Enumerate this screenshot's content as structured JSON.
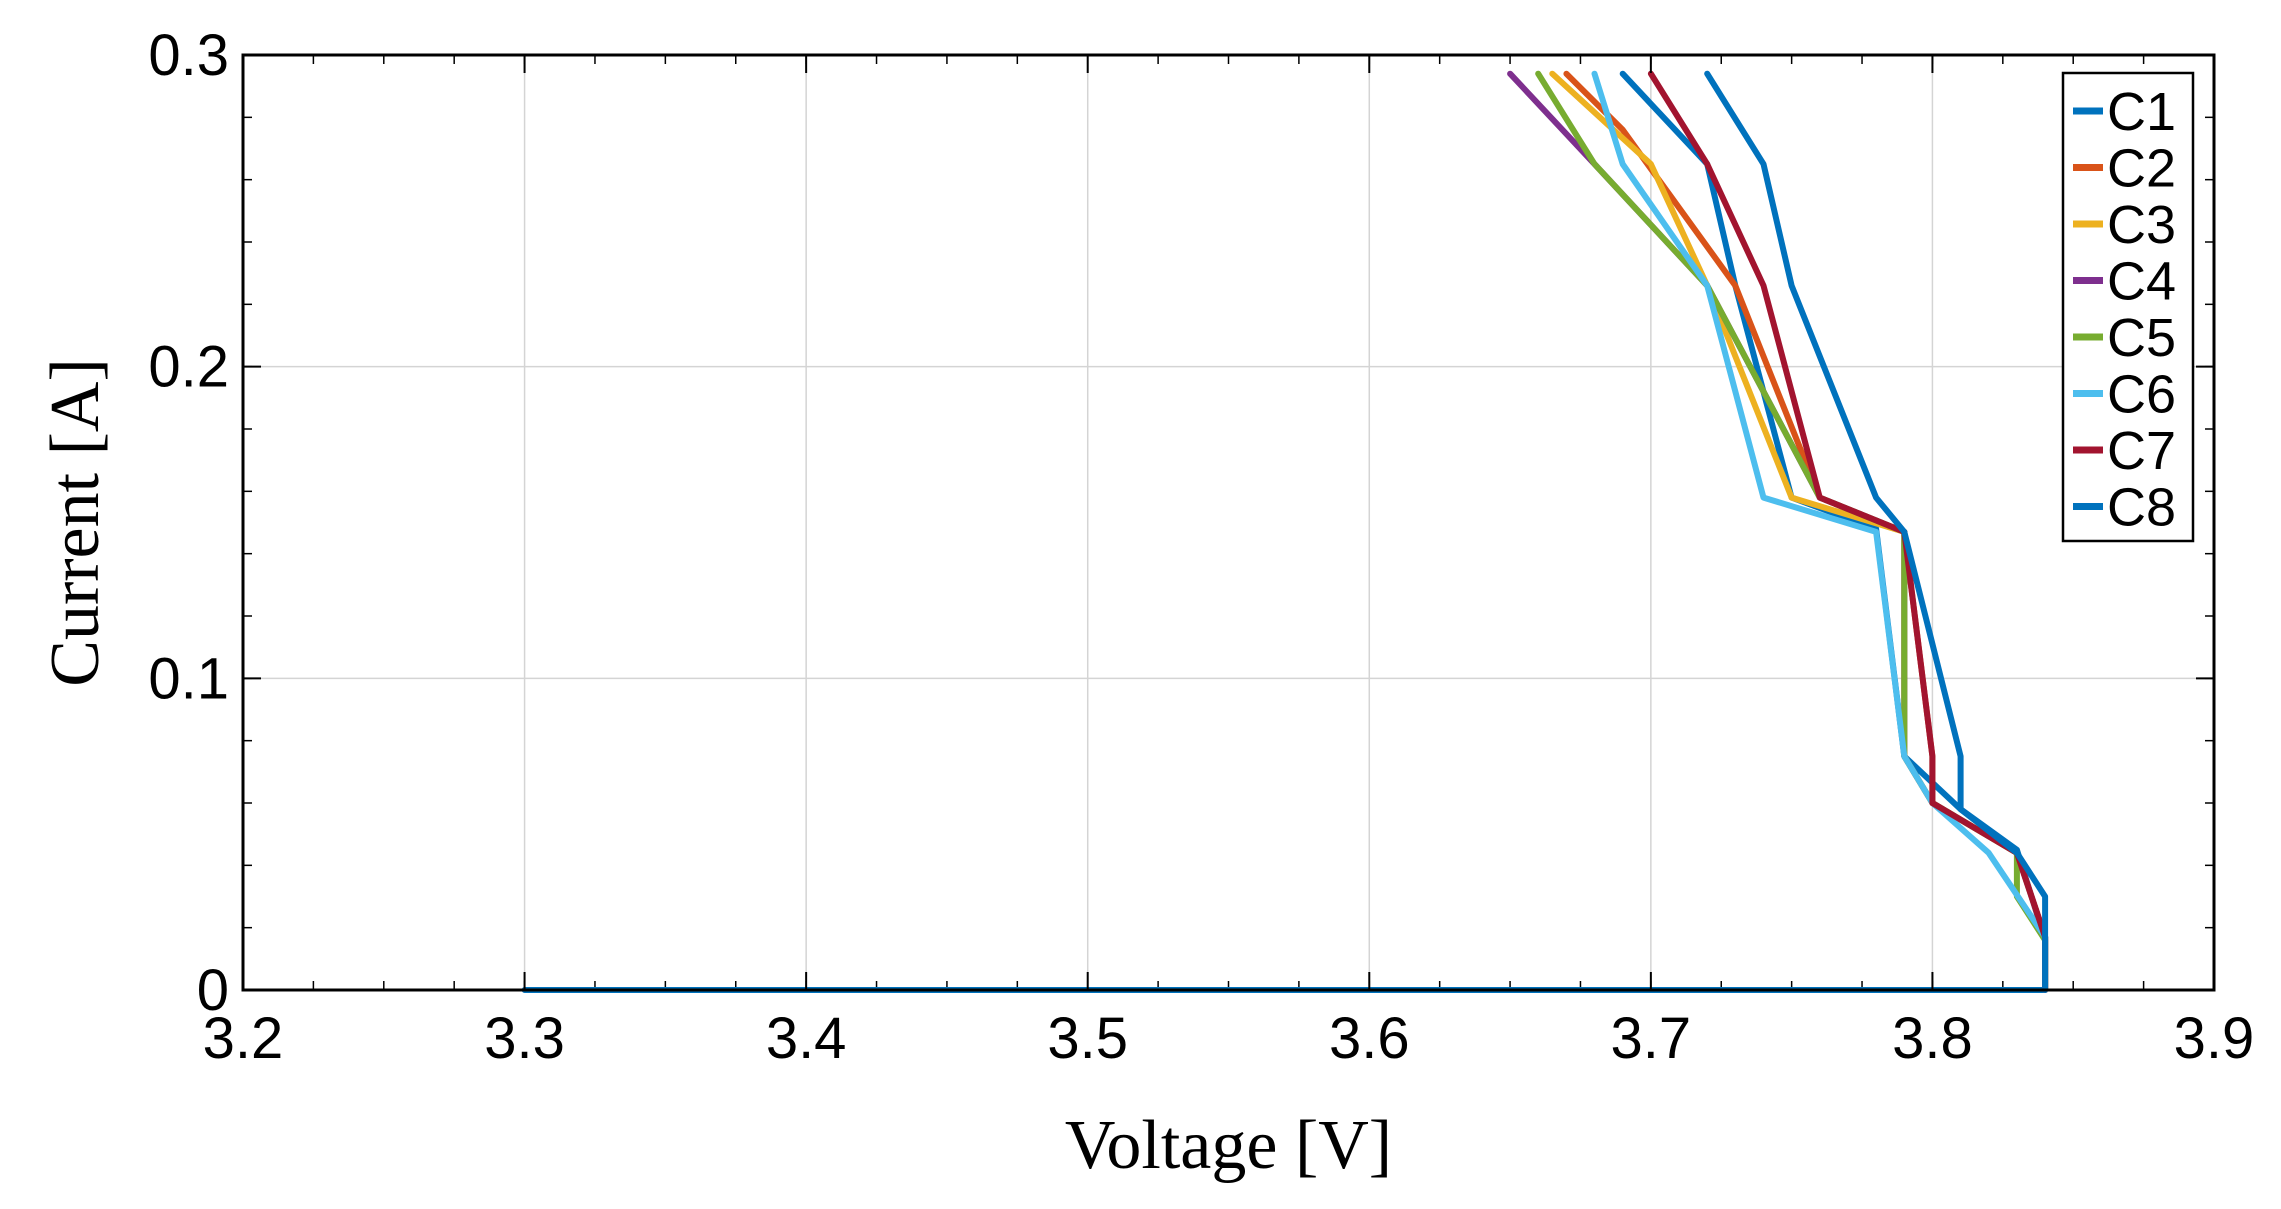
{
  "chart_data": {
    "type": "line",
    "title": "",
    "xlabel": "Voltage [V]",
    "ylabel": "Current [A]",
    "xlim": [
      3.2,
      3.9
    ],
    "ylim": [
      0,
      0.3
    ],
    "x_ticks": [
      3.2,
      3.3,
      3.4,
      3.5,
      3.6,
      3.7,
      3.8,
      3.9
    ],
    "x_tick_labels": [
      "3.2",
      "3.3",
      "3.4",
      "3.5",
      "3.6",
      "3.7",
      "3.8",
      "3.9"
    ],
    "y_ticks": [
      0,
      0.1,
      0.2,
      0.3
    ],
    "y_tick_labels": [
      "0",
      "0.1",
      "0.2",
      "0.3"
    ],
    "grid": true,
    "legend_position": "top-right",
    "series": [
      {
        "name": "C1",
        "color": "#0072BD",
        "points": [
          [
            3.3,
            0
          ],
          [
            3.83,
            0
          ],
          [
            3.84,
            0
          ],
          [
            3.84,
            0.016
          ],
          [
            3.83,
            0.045
          ],
          [
            3.81,
            0.058
          ],
          [
            3.79,
            0.075
          ],
          [
            3.78,
            0.148
          ],
          [
            3.75,
            0.158
          ],
          [
            3.73,
            0.226
          ],
          [
            3.72,
            0.265
          ],
          [
            3.69,
            0.294
          ]
        ]
      },
      {
        "name": "C2",
        "color": "#D95319",
        "points": [
          [
            3.84,
            0
          ],
          [
            3.84,
            0.017
          ],
          [
            3.83,
            0.044
          ],
          [
            3.8,
            0.06
          ],
          [
            3.8,
            0.075
          ],
          [
            3.79,
            0.147
          ],
          [
            3.76,
            0.158
          ],
          [
            3.73,
            0.226
          ],
          [
            3.69,
            0.276
          ],
          [
            3.67,
            0.294
          ]
        ]
      },
      {
        "name": "C3",
        "color": "#EDB120",
        "points": [
          [
            3.84,
            0
          ],
          [
            3.84,
            0.017
          ],
          [
            3.83,
            0.044
          ],
          [
            3.8,
            0.06
          ],
          [
            3.79,
            0.075
          ],
          [
            3.79,
            0.147
          ],
          [
            3.75,
            0.158
          ],
          [
            3.72,
            0.226
          ],
          [
            3.7,
            0.265
          ],
          [
            3.665,
            0.294
          ]
        ]
      },
      {
        "name": "C4",
        "color": "#7E2F8E",
        "points": [
          [
            3.84,
            0
          ],
          [
            3.84,
            0.017
          ],
          [
            3.83,
            0.044
          ],
          [
            3.8,
            0.06
          ],
          [
            3.79,
            0.075
          ],
          [
            3.79,
            0.147
          ],
          [
            3.76,
            0.158
          ],
          [
            3.72,
            0.226
          ],
          [
            3.68,
            0.265
          ],
          [
            3.65,
            0.294
          ]
        ]
      },
      {
        "name": "C5",
        "color": "#77AC30",
        "points": [
          [
            3.84,
            0
          ],
          [
            3.84,
            0.016
          ],
          [
            3.83,
            0.03
          ],
          [
            3.83,
            0.044
          ],
          [
            3.8,
            0.06
          ],
          [
            3.79,
            0.075
          ],
          [
            3.79,
            0.147
          ],
          [
            3.76,
            0.158
          ],
          [
            3.72,
            0.226
          ],
          [
            3.68,
            0.265
          ],
          [
            3.66,
            0.294
          ]
        ]
      },
      {
        "name": "C6",
        "color": "#4DBEEE",
        "points": [
          [
            3.84,
            0
          ],
          [
            3.84,
            0.017
          ],
          [
            3.82,
            0.044
          ],
          [
            3.8,
            0.06
          ],
          [
            3.79,
            0.075
          ],
          [
            3.78,
            0.147
          ],
          [
            3.74,
            0.158
          ],
          [
            3.72,
            0.226
          ],
          [
            3.69,
            0.265
          ],
          [
            3.68,
            0.294
          ]
        ]
      },
      {
        "name": "C7",
        "color": "#A2142F",
        "points": [
          [
            3.84,
            0
          ],
          [
            3.84,
            0.017
          ],
          [
            3.83,
            0.044
          ],
          [
            3.8,
            0.06
          ],
          [
            3.8,
            0.075
          ],
          [
            3.79,
            0.147
          ],
          [
            3.76,
            0.158
          ],
          [
            3.74,
            0.226
          ],
          [
            3.72,
            0.265
          ],
          [
            3.7,
            0.294
          ]
        ]
      },
      {
        "name": "C8",
        "color": "#0072BD",
        "points": [
          [
            3.84,
            0
          ],
          [
            3.84,
            0.03
          ],
          [
            3.83,
            0.044
          ],
          [
            3.81,
            0.058
          ],
          [
            3.81,
            0.075
          ],
          [
            3.79,
            0.147
          ],
          [
            3.78,
            0.158
          ],
          [
            3.75,
            0.226
          ],
          [
            3.74,
            0.265
          ],
          [
            3.72,
            0.294
          ]
        ]
      }
    ]
  }
}
